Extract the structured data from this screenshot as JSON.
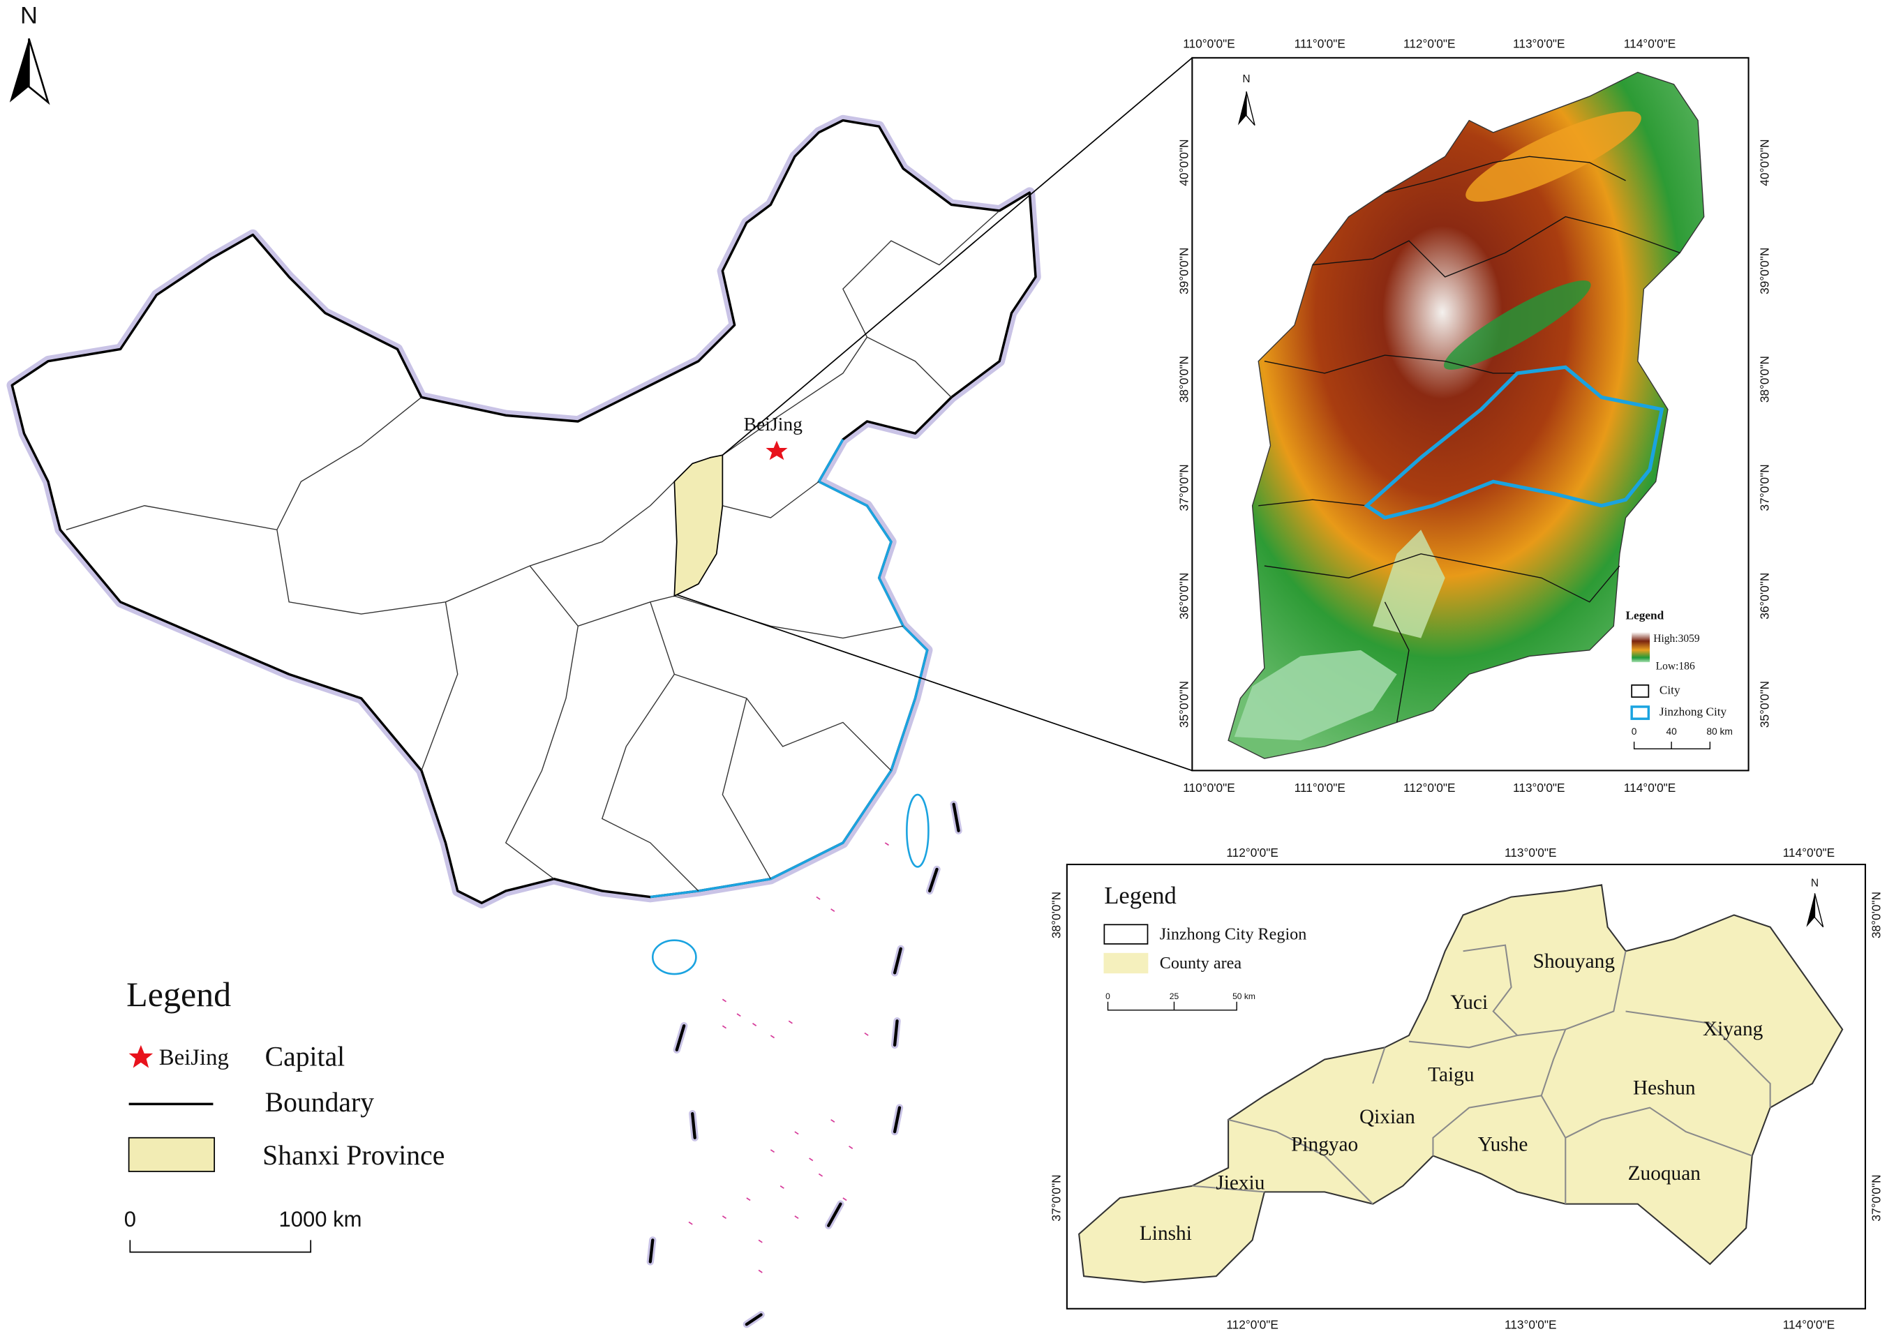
{
  "north_arrow": "N",
  "china_map": {
    "capital_label": "BeiJing"
  },
  "china_legend": {
    "title": "Legend",
    "capital_symbol_label": "BeiJing",
    "capital": "Capital",
    "boundary": "Boundary",
    "province": "Shanxi Province",
    "scale": [
      "0",
      "1000 km"
    ]
  },
  "shanxi_map": {
    "longitudes": [
      "110°0'0\"E",
      "111°0'0\"E",
      "112°0'0\"E",
      "113°0'0\"E",
      "114°0'0\"E"
    ],
    "latitudes": [
      "40°0'0\"N",
      "39°0'0\"N",
      "38°0'0\"N",
      "37°0'0\"N",
      "36°0'0\"N",
      "35°0'0\"N"
    ],
    "north": "N",
    "legend": {
      "title": "Legend",
      "high": "High:3059",
      "low": "Low:186",
      "city": "City",
      "jinzhong": "Jinzhong City",
      "scale": [
        "0",
        "40",
        "80 km"
      ]
    }
  },
  "jinzhong_map": {
    "longitudes": [
      "112°0'0\"E",
      "113°0'0\"E",
      "114°0'0\"E"
    ],
    "latitudes": [
      "38°0'0\"N",
      "37°0'0\"N"
    ],
    "north": "N",
    "legend": {
      "title": "Legend",
      "region": "Jinzhong City Region",
      "county": "County area",
      "scale": [
        "0",
        "25",
        "50 km"
      ]
    },
    "counties": [
      "Shouyang",
      "Yuci",
      "Xiyang",
      "Taigu",
      "Heshun",
      "Qixian",
      "Pingyao",
      "Yushe",
      "Zuoquan",
      "Jiexiu",
      "Linshi"
    ]
  }
}
